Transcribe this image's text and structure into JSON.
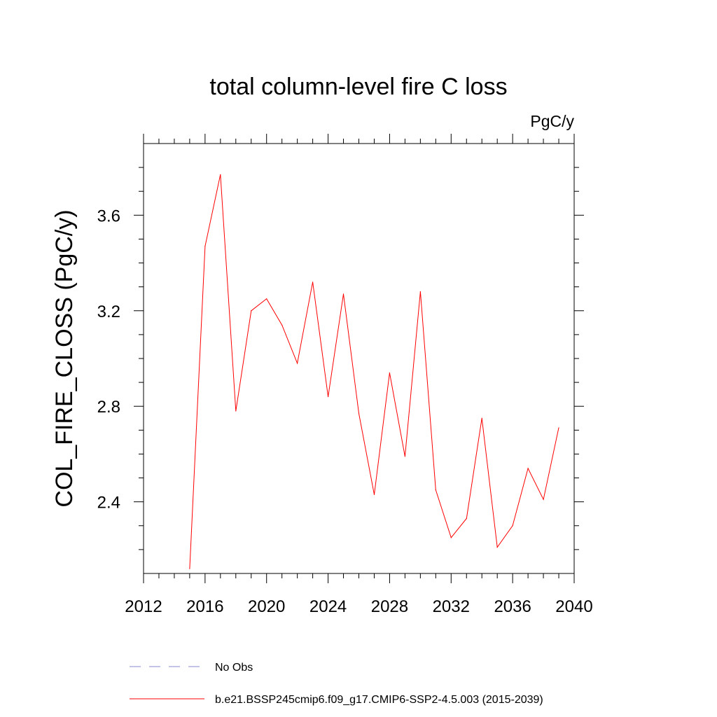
{
  "chart_data": {
    "type": "line",
    "title": "total column-level fire C loss",
    "units_label": "PgC/y",
    "ylabel": "COL_FIRE_CLOSS  (PgC/y)",
    "xlabel": "",
    "xlim": [
      2012,
      2040
    ],
    "ylim": [
      2.1,
      3.9
    ],
    "x_ticks": [
      2012,
      2016,
      2020,
      2024,
      2028,
      2032,
      2036,
      2040
    ],
    "y_ticks": [
      2.4,
      2.8,
      3.2,
      3.6
    ],
    "x_tick_labels": [
      "2012",
      "2016",
      "2020",
      "2024",
      "2028",
      "2032",
      "2036",
      "2040"
    ],
    "y_tick_labels": [
      "2.4",
      "2.8",
      "3.2",
      "3.6"
    ],
    "series": [
      {
        "name": "b.e21.BSSP245cmip6.f09_g17.CMIP6-SSP2-4.5.003 (2015-2039)",
        "color": "#ff0000",
        "x": [
          2015,
          2016,
          2017,
          2018,
          2019,
          2020,
          2021,
          2022,
          2023,
          2024,
          2025,
          2026,
          2027,
          2028,
          2029,
          2030,
          2031,
          2032,
          2033,
          2034,
          2035,
          2036,
          2037,
          2038,
          2039
        ],
        "values": [
          2.12,
          3.47,
          3.77,
          2.78,
          3.2,
          3.25,
          3.14,
          2.98,
          3.32,
          2.84,
          3.27,
          2.77,
          2.43,
          2.94,
          2.59,
          3.28,
          2.45,
          2.25,
          2.33,
          2.75,
          2.21,
          2.3,
          2.54,
          2.41,
          2.71
        ]
      }
    ],
    "legend": [
      {
        "label": "No Obs",
        "color": "#8a8ad0",
        "style": "dashed"
      },
      {
        "label": "b.e21.BSSP245cmip6.f09_g17.CMIP6-SSP2-4.5.003 (2015-2039)",
        "color": "#ff0000",
        "style": "solid"
      }
    ],
    "legend_position": "bottom-center",
    "grid": false
  }
}
